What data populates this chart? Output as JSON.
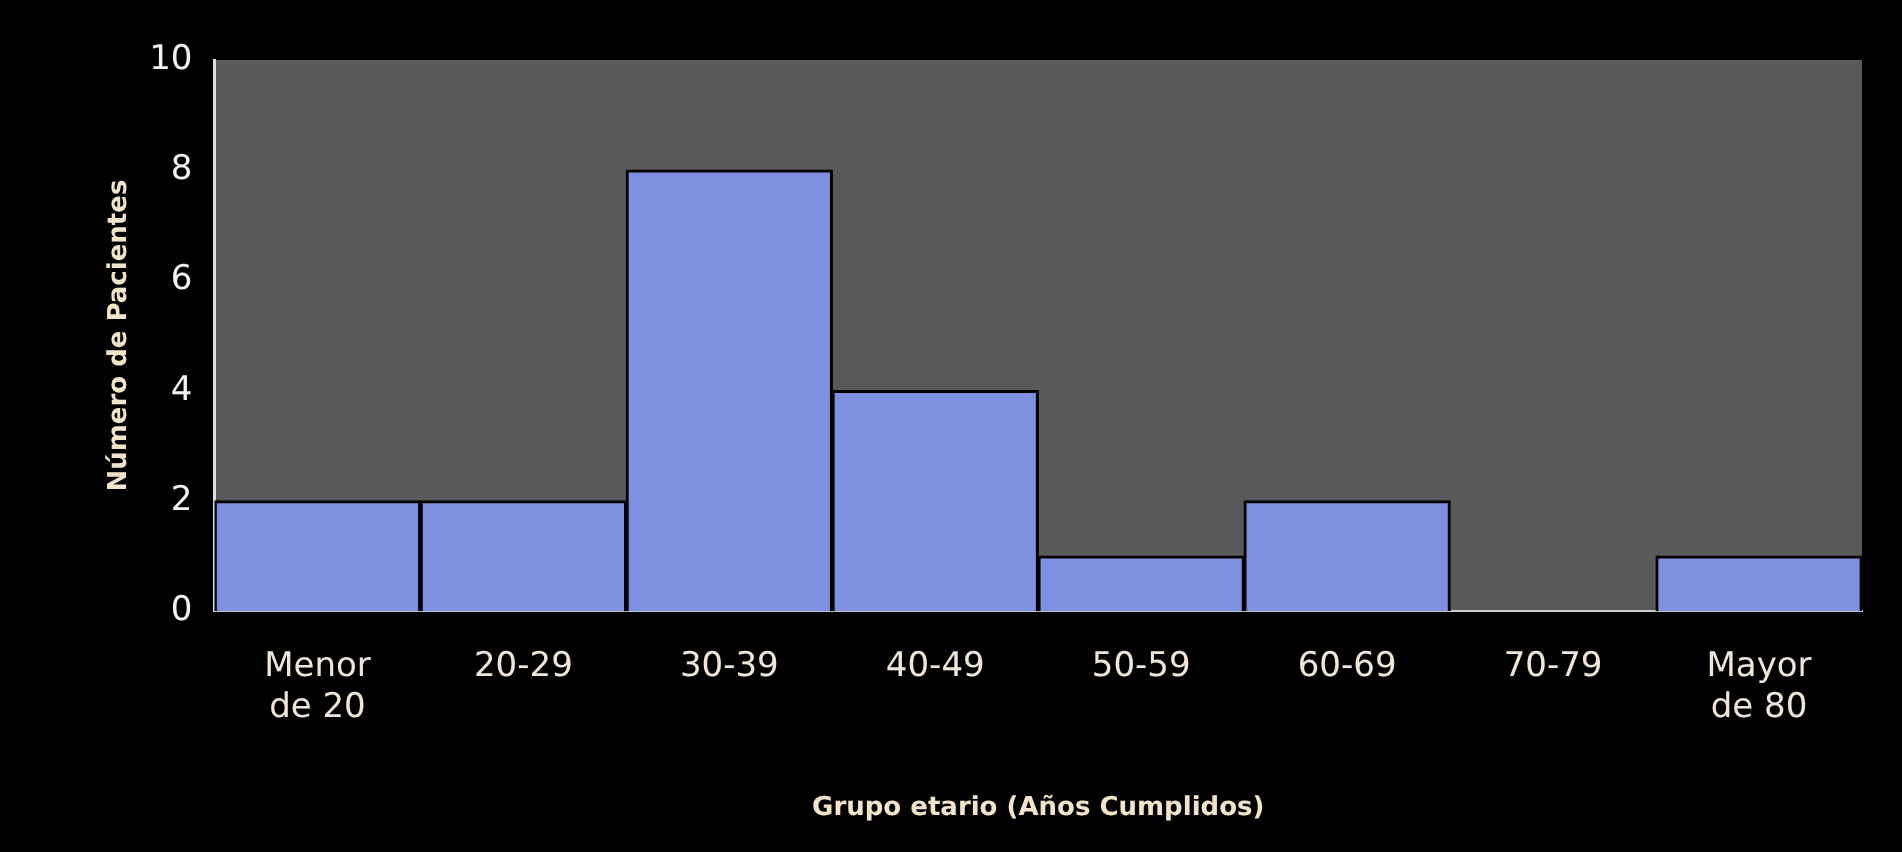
{
  "chart_data": {
    "type": "bar",
    "xlabel": "Grupo etario (Años Cumplidos)",
    "ylabel": "Número de Pacientes",
    "categories": [
      "Menor de 20",
      "20-29",
      "30-39",
      "40-49",
      "50-59",
      "60-69",
      "70-79",
      "Mayor de 80"
    ],
    "values": [
      2,
      2,
      8,
      4,
      1,
      2,
      0,
      1
    ],
    "color": "#8090e0",
    "ylim": [
      0,
      10
    ],
    "yticks": [
      0,
      2,
      4,
      6,
      8,
      10
    ],
    "grid": false,
    "legend": false
  }
}
